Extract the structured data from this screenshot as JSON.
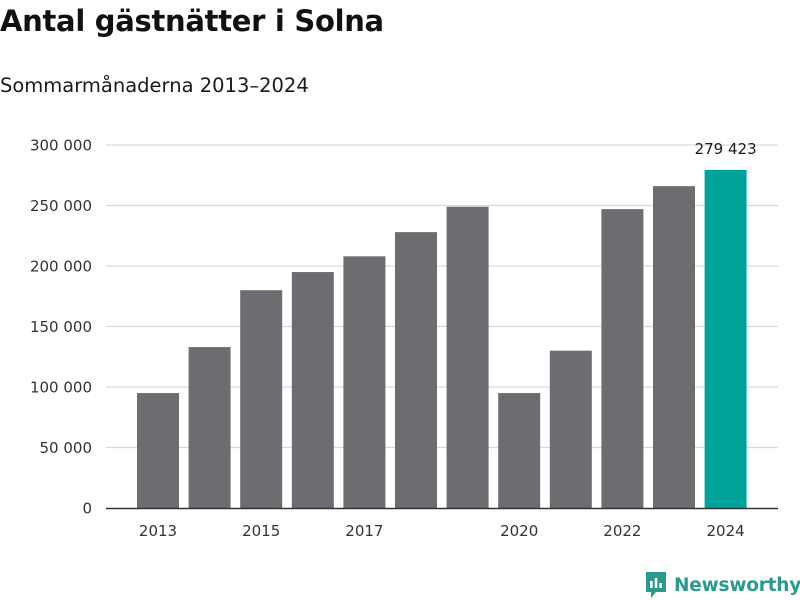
{
  "title": "Antal gästnätter i Solna",
  "subtitle": "Sommarmånaderna 2013–2024",
  "brand": "Newsworthy",
  "colors": {
    "bar": "#6d6c71",
    "highlight": "#00a39a",
    "grid": "#d9d9d9",
    "axis": "#333333",
    "brand": "#2b9a8d"
  },
  "chart_data": {
    "type": "bar",
    "title": "Antal gästnätter i Solna",
    "subtitle": "Sommarmånaderna 2013–2024",
    "xlabel": "",
    "ylabel": "",
    "categories": [
      2013,
      2014,
      2015,
      2016,
      2017,
      2018,
      2019,
      2020,
      2021,
      2022,
      2023,
      2024
    ],
    "x_tick_labels": [
      "2013",
      "",
      "2015",
      "",
      "2017",
      "",
      "",
      "2020",
      "",
      "2022",
      "",
      "2024"
    ],
    "values": [
      95000,
      133000,
      180000,
      195000,
      208000,
      228000,
      249000,
      95000,
      130000,
      247000,
      266000,
      279423
    ],
    "highlight_index": 11,
    "data_labels": {
      "11": "279 423"
    },
    "ylim": [
      0,
      300000
    ],
    "y_ticks": [
      0,
      50000,
      100000,
      150000,
      200000,
      250000,
      300000
    ],
    "y_tick_labels": [
      "0",
      "50 000",
      "100 000",
      "150 000",
      "200 000",
      "250 000",
      "300 000"
    ],
    "grid": true
  }
}
